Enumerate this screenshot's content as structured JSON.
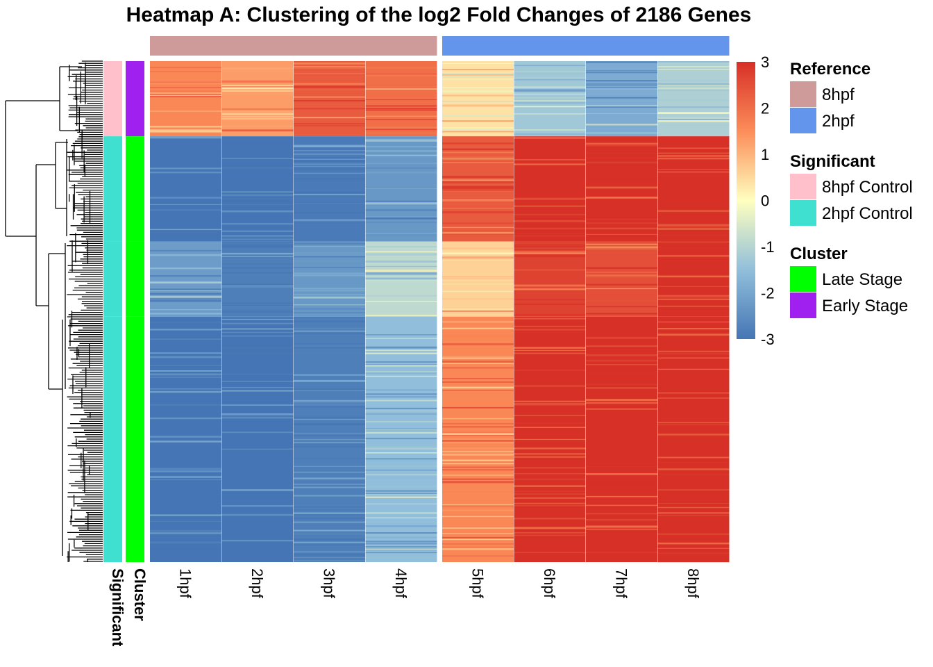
{
  "chart_data": {
    "type": "heatmap",
    "title": "Heatmap A: Clustering of the log2 Fold Changes of 2186 Genes",
    "columns": [
      "1hpf",
      "2hpf",
      "3hpf",
      "4hpf",
      "5hpf",
      "6hpf",
      "7hpf",
      "8hpf"
    ],
    "column_groups": [
      {
        "reference": "8hpf",
        "columns": [
          "1hpf",
          "2hpf",
          "3hpf",
          "4hpf"
        ]
      },
      {
        "reference": "2hpf",
        "columns": [
          "5hpf",
          "6hpf",
          "7hpf",
          "8hpf"
        ]
      }
    ],
    "row_annotation_labels": [
      "Significant",
      "Cluster"
    ],
    "row_blocks": [
      {
        "significant": "8hpf Control",
        "cluster": "Early Stage",
        "share": 0.15,
        "values": [
          1.6,
          1.3,
          2.3,
          2.0,
          0.4,
          -1.3,
          -1.9,
          -1.1
        ]
      },
      {
        "significant": "2hpf Control",
        "cluster": "Late Stage",
        "share": 0.21,
        "values": [
          -3.0,
          -3.0,
          -2.9,
          -2.3,
          2.3,
          3.0,
          3.0,
          3.0
        ]
      },
      {
        "significant": "2hpf Control",
        "cluster": "Late Stage",
        "share": 0.15,
        "values": [
          -2.2,
          -2.8,
          -2.3,
          -0.9,
          0.6,
          2.7,
          2.5,
          3.0
        ]
      },
      {
        "significant": "2hpf Control",
        "cluster": "Late Stage",
        "share": 0.49,
        "values": [
          -3.0,
          -3.0,
          -2.8,
          -1.5,
          1.6,
          3.0,
          3.0,
          3.0
        ]
      }
    ],
    "color_scale": {
      "min": -3,
      "max": 3,
      "stops": [
        {
          "value": -3,
          "color": "#4575b4"
        },
        {
          "value": -1.5,
          "color": "#91bfdb"
        },
        {
          "value": 0,
          "color": "#ffffbf"
        },
        {
          "value": 1.5,
          "color": "#fc8d59"
        },
        {
          "value": 3,
          "color": "#d73027"
        }
      ],
      "ticks": [
        3,
        2,
        1,
        0,
        -1,
        -2,
        -3
      ]
    },
    "legends": [
      {
        "title": "Reference",
        "entries": [
          {
            "label": "8hpf",
            "color": "#CE9A9A"
          },
          {
            "label": "2hpf",
            "color": "#6495ED"
          }
        ]
      },
      {
        "title": "Significant",
        "entries": [
          {
            "label": "8hpf Control",
            "color": "#FFC0CB"
          },
          {
            "label": "2hpf Control",
            "color": "#40E0D0"
          }
        ]
      },
      {
        "title": "Cluster",
        "entries": [
          {
            "label": "Late Stage",
            "color": "#00FF00"
          },
          {
            "label": "Early Stage",
            "color": "#A020F0"
          }
        ]
      }
    ]
  }
}
